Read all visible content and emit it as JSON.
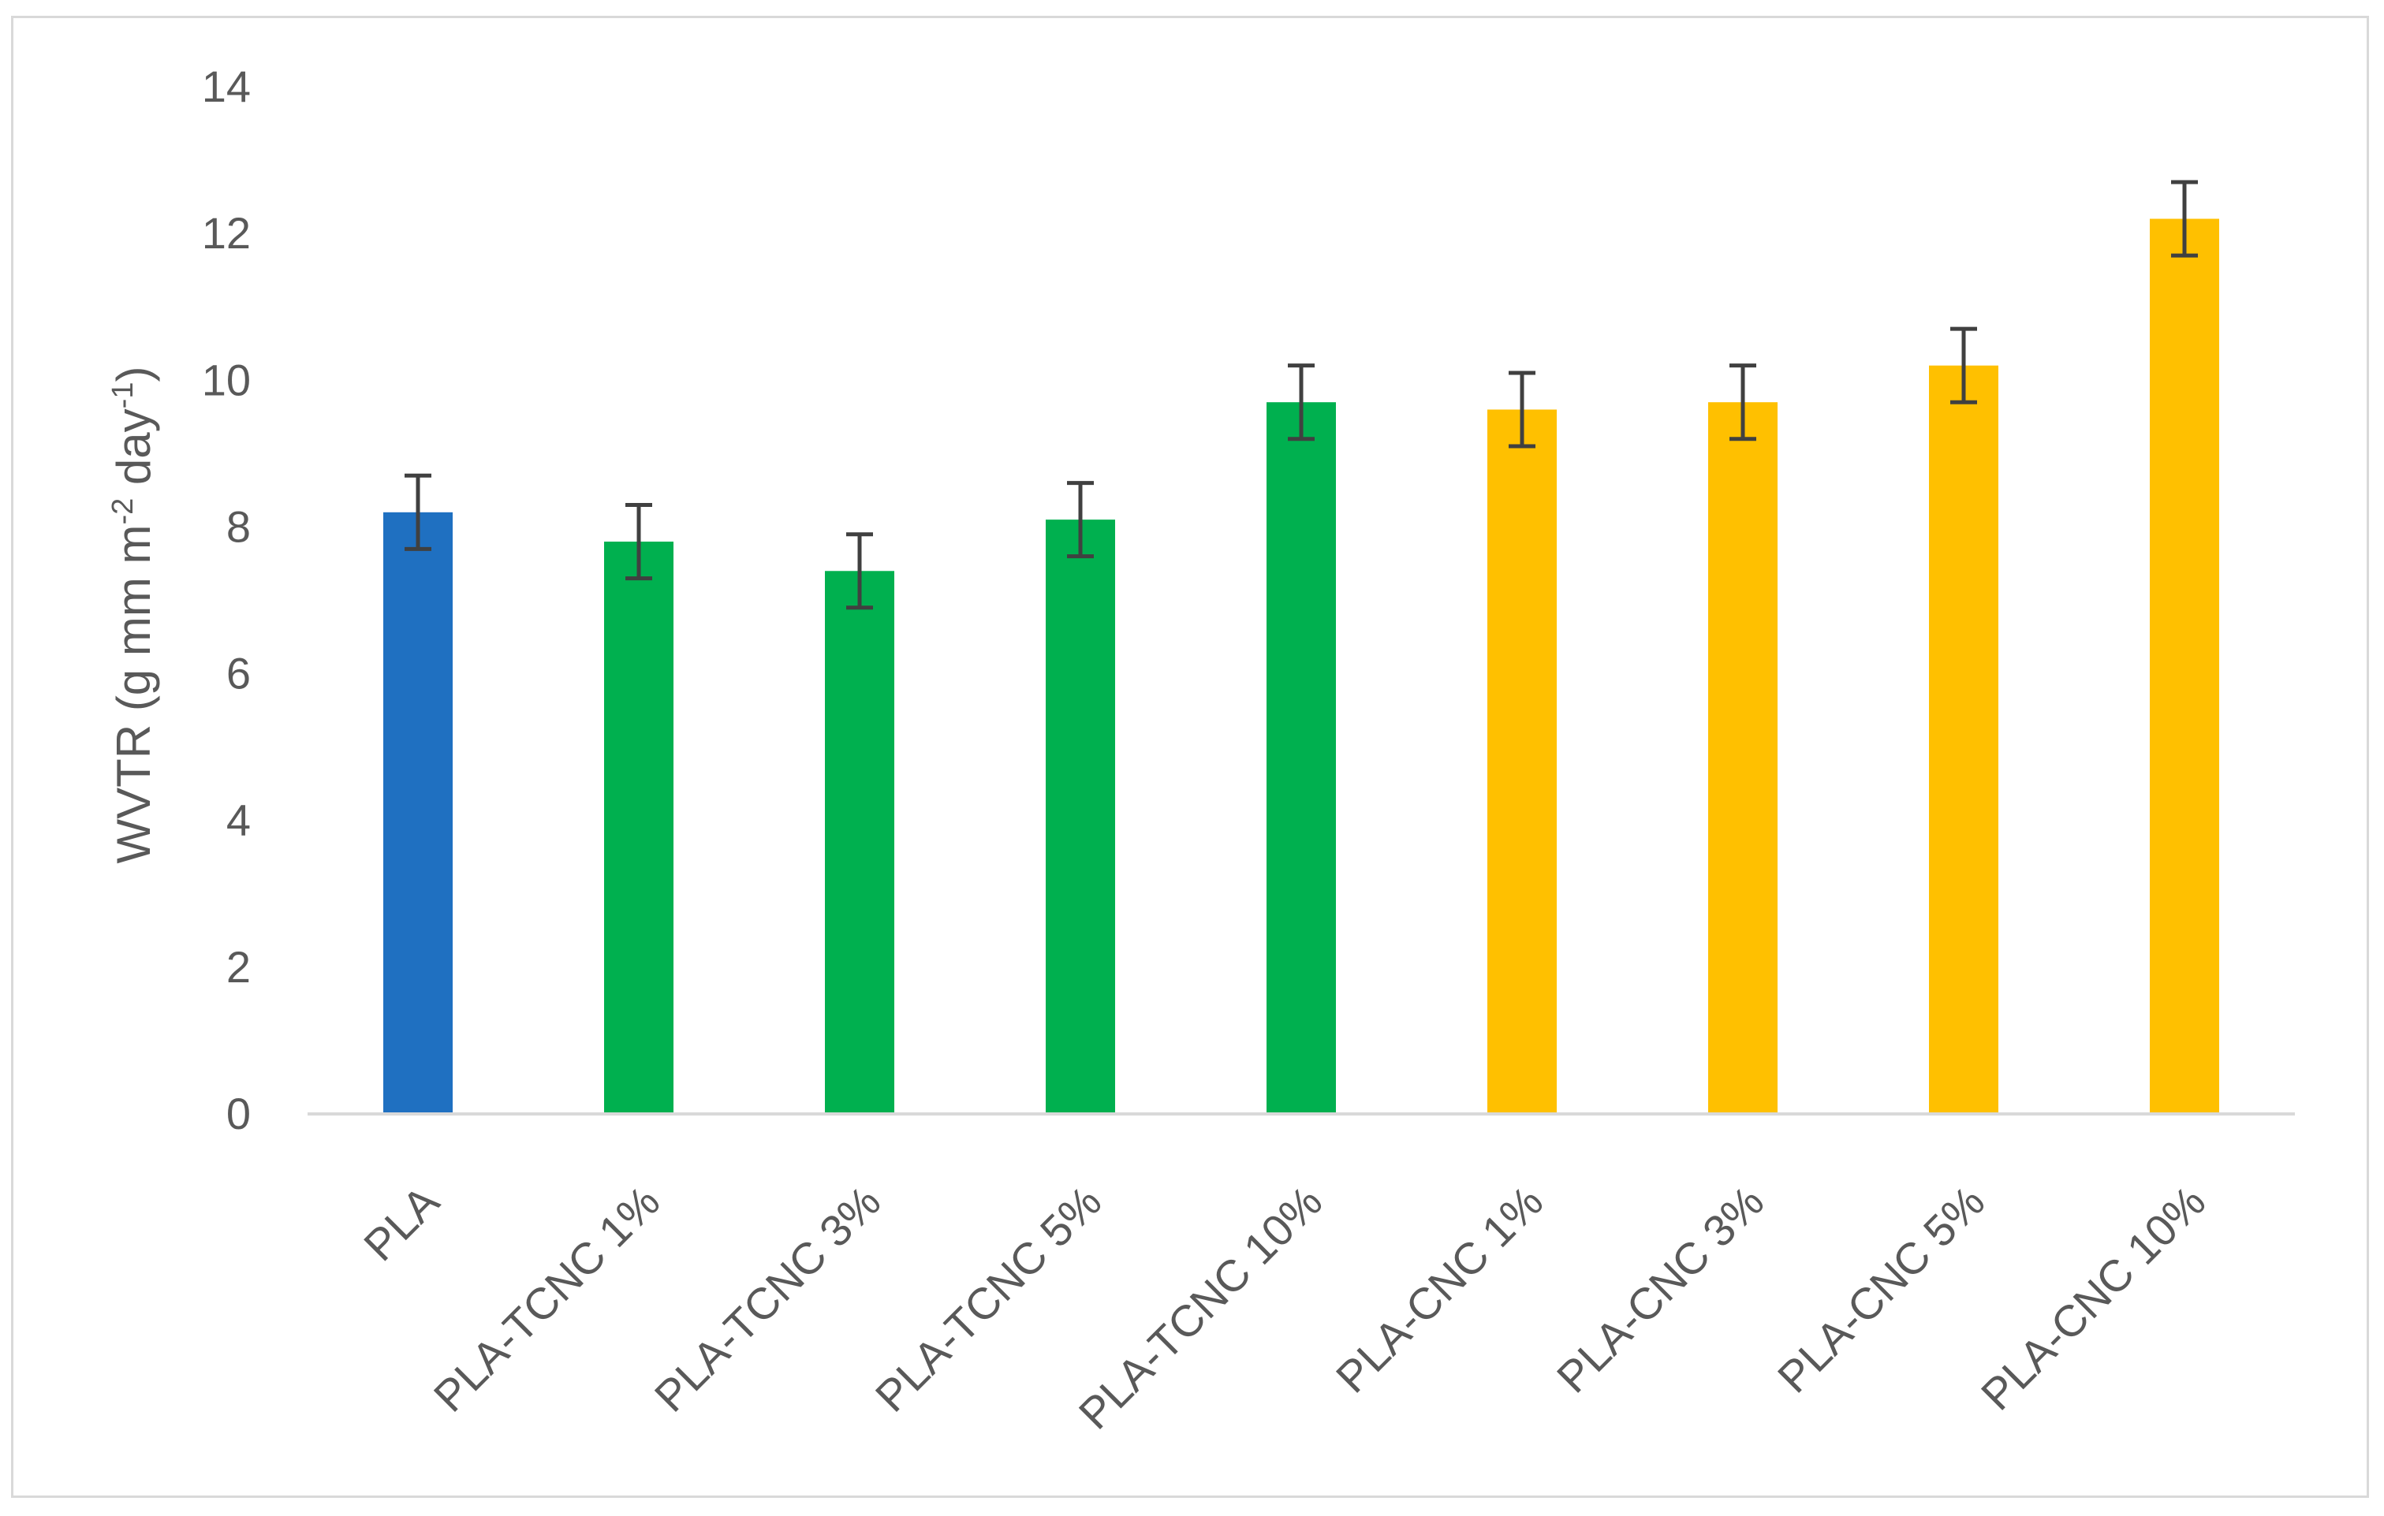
{
  "chart_data": {
    "type": "bar",
    "title": "",
    "xlabel": "",
    "ylabel": {
      "prefix": "WVTR (g mm m",
      "sup1": "-2",
      "middle": " day",
      "sup2": "-1",
      "suffix": ")"
    },
    "ylim": [
      0,
      14
    ],
    "yticks": [
      0,
      2,
      4,
      6,
      8,
      10,
      12,
      14
    ],
    "grid": false,
    "categories": [
      "PLA",
      "PLA-TCNC 1%",
      "PLA-TCNC 3%",
      "PLA-TCNC 5%",
      "PLA-TCNC 10%",
      "PLA-CNC 1%",
      "PLA-CNC 3%",
      "PLA-CNC 5%",
      "PLA-CNC 10%"
    ],
    "values": [
      8.2,
      7.8,
      7.4,
      8.1,
      9.7,
      9.6,
      9.7,
      10.2,
      12.2
    ],
    "errors": [
      0.5,
      0.5,
      0.5,
      0.5,
      0.5,
      0.5,
      0.5,
      0.5,
      0.5
    ],
    "colors": [
      "#1f70c1",
      "#00b04f",
      "#00b04f",
      "#00b04f",
      "#00b04f",
      "#ffc000",
      "#ffc000",
      "#ffc000",
      "#ffc000"
    ],
    "errorbar_color": "#404040",
    "axis_color": "#d9d9d9",
    "text_color": "#595959"
  }
}
